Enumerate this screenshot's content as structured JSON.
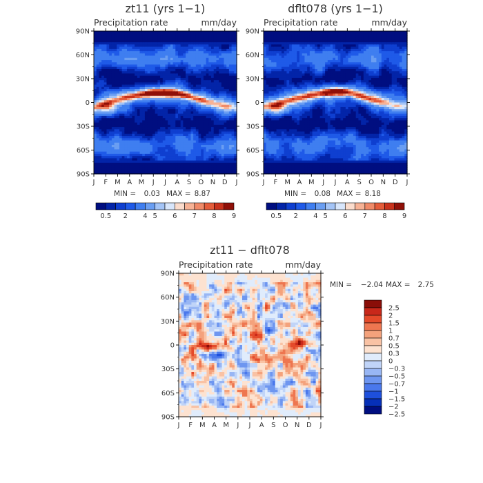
{
  "chart_data": [
    {
      "type": "heatmap",
      "id": "panel-a",
      "title": "zt11 (yrs 1−1)",
      "subtitle_left": "Precipitation rate",
      "subtitle_right": "mm/day",
      "x_ticks": [
        "J",
        "F",
        "M",
        "A",
        "M",
        "J",
        "J",
        "A",
        "S",
        "O",
        "N",
        "D",
        "J"
      ],
      "y_ticks": [
        "90N",
        "60N",
        "30N",
        "0",
        "30S",
        "60S",
        "90S"
      ],
      "y_values": [
        90,
        60,
        30,
        0,
        -30,
        -60,
        -90
      ],
      "stats": {
        "min_label": "MIN =",
        "min": "0.03",
        "max_label": "MAX =",
        "max": "8.87"
      },
      "colorbar": {
        "labels": [
          "0.5",
          "2",
          "4",
          "5",
          "6",
          "7",
          "8",
          "9"
        ]
      },
      "field": {
        "rainbelt_lat": [
          -6,
          -1,
          3,
          7,
          10,
          12,
          12,
          11,
          8,
          3,
          -1,
          -5
        ],
        "rainbelt_peak": [
          5.2,
          5.6,
          6.0,
          6.8,
          7.6,
          8.6,
          8.9,
          8.6,
          7.8,
          6.8,
          5.8,
          5.3
        ]
      }
    },
    {
      "type": "heatmap",
      "id": "panel-b",
      "title": "dflt078 (yrs 1−1)",
      "subtitle_left": "Precipitation rate",
      "subtitle_right": "mm/day",
      "x_ticks": [
        "J",
        "F",
        "M",
        "A",
        "M",
        "J",
        "J",
        "A",
        "S",
        "O",
        "N",
        "D",
        "J"
      ],
      "y_ticks": [
        "90N",
        "60N",
        "30N",
        "0",
        "30S",
        "60S",
        "90S"
      ],
      "y_values": [
        90,
        60,
        30,
        0,
        -30,
        -60,
        -90
      ],
      "stats": {
        "min_label": "MIN =",
        "min": "0.08",
        "max_label": "MAX =",
        "max": "8.18"
      },
      "colorbar": {
        "labels": [
          "0.5",
          "2",
          "4",
          "5",
          "6",
          "7",
          "8",
          "9"
        ]
      },
      "field": {
        "rainbelt_lat": [
          -5,
          -2,
          2,
          6,
          9,
          12,
          14,
          13,
          9,
          4,
          0,
          -4
        ],
        "rainbelt_peak": [
          5.0,
          5.3,
          5.8,
          6.4,
          7.2,
          7.9,
          8.2,
          8.0,
          7.4,
          6.4,
          5.6,
          5.1
        ]
      }
    },
    {
      "type": "heatmap",
      "id": "panel-diff",
      "title": "zt11 − dflt078",
      "subtitle_left": "Precipitation rate",
      "subtitle_right": "mm/day",
      "x_ticks": [
        "J",
        "F",
        "M",
        "A",
        "M",
        "J",
        "J",
        "A",
        "S",
        "O",
        "N",
        "D",
        "J"
      ],
      "y_ticks": [
        "90N",
        "60N",
        "30N",
        "0",
        "30S",
        "60S",
        "90S"
      ],
      "y_values": [
        90,
        60,
        30,
        0,
        -30,
        -60,
        -90
      ],
      "stats": {
        "min_label": "MIN =",
        "min": "−2.04",
        "max_label": "MAX =",
        "max": "2.75"
      },
      "colorbar": {
        "labels": [
          "2.5",
          "2",
          "1.5",
          "1",
          "0.7",
          "0.5",
          "0.3",
          "0",
          "−0.3",
          "−0.5",
          "−0.7",
          "−1",
          "−1.5",
          "−2",
          "−2.5"
        ]
      }
    }
  ],
  "colors": {
    "sequential": [
      "#000e80",
      "#0324a8",
      "#0f3fd0",
      "#1f5ae8",
      "#3f7ef0",
      "#6a9ef2",
      "#a4c4f6",
      "#d8e6fb",
      "#fbdccc",
      "#f7b295",
      "#f08a68",
      "#e45c3a",
      "#c8321c",
      "#901008"
    ],
    "diverging": [
      "#000e80",
      "#0630b8",
      "#1e50dc",
      "#4a78ec",
      "#6e96f0",
      "#98b6f4",
      "#c0d4f8",
      "#e0ecfc",
      "#fde2d0",
      "#f9c2a4",
      "#f4a27c",
      "#ee7650",
      "#e44a2a",
      "#c8281a",
      "#8a0e08"
    ]
  }
}
